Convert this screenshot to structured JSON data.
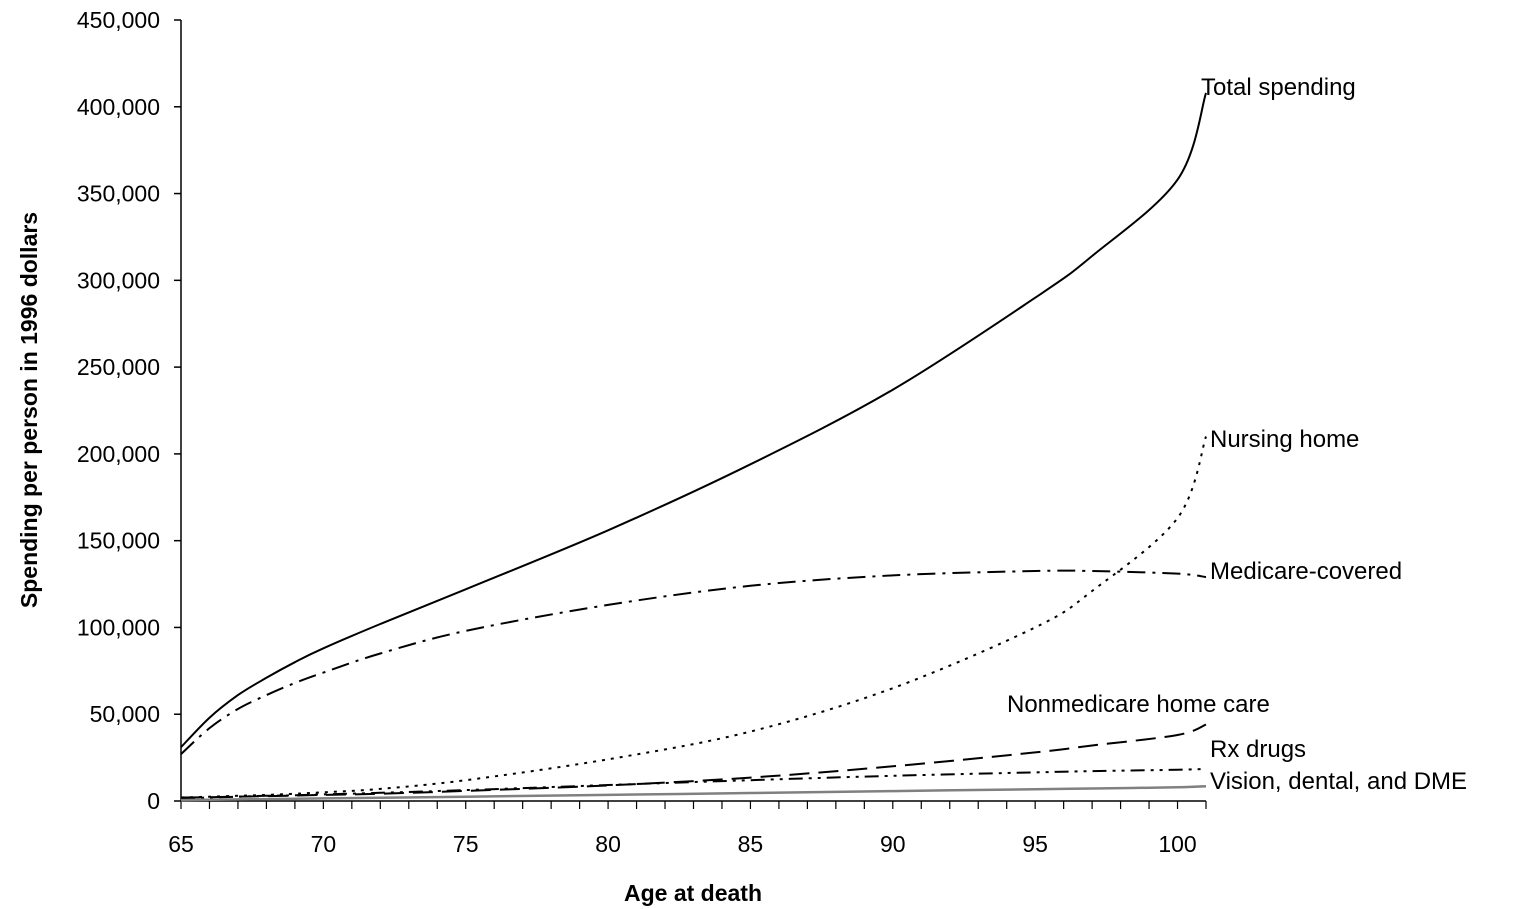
{
  "chart_data": {
    "type": "line",
    "title": "",
    "xlabel": "Age at death",
    "ylabel": "Spending per person in 1996 dollars",
    "xlim": [
      65,
      101
    ],
    "ylim": [
      0,
      450000
    ],
    "x_ticks": [
      "65",
      "70",
      "75",
      "80",
      "85",
      "90",
      "95",
      "100"
    ],
    "y_ticks": [
      "0",
      "50,000",
      "100,000",
      "150,000",
      "200,000",
      "250,000",
      "300,000",
      "350,000",
      "400,000",
      "450,000"
    ],
    "grid": false,
    "legend": "none (series labeled directly at right)",
    "x": [
      65,
      66,
      67,
      68,
      69,
      70,
      72,
      75,
      80,
      85,
      90,
      95,
      97,
      100,
      101
    ],
    "series": [
      {
        "name": "Total spending",
        "color": "#000000",
        "dash": "solid",
        "values": [
          31000,
          48000,
          61000,
          71000,
          80000,
          88000,
          102000,
          122000,
          156000,
          194000,
          237000,
          290000,
          314000,
          358000,
          408000
        ]
      },
      {
        "name": "Nursing home",
        "color": "#000000",
        "dash": "dotted",
        "values": [
          2000,
          2500,
          3000,
          3500,
          4200,
          5000,
          7000,
          12000,
          24000,
          40000,
          65000,
          100000,
          121000,
          163000,
          210000
        ]
      },
      {
        "name": "Medicare-covered",
        "color": "#000000",
        "dash": "dashdot",
        "values": [
          27000,
          42000,
          53000,
          61000,
          68000,
          74000,
          85000,
          98000,
          113000,
          124000,
          130000,
          132500,
          132500,
          131000,
          129000
        ]
      },
      {
        "name": "Nonmedicare home care",
        "color": "#000000",
        "dash": "dashed",
        "values": [
          2000,
          2200,
          2500,
          2800,
          3100,
          3500,
          4200,
          5800,
          9000,
          13500,
          20000,
          28000,
          32000,
          38000,
          44000
        ]
      },
      {
        "name": "Rx drugs",
        "color": "#000000",
        "dash": "dashdotdot",
        "values": [
          1500,
          2000,
          2500,
          3000,
          3300,
          3800,
          4700,
          6300,
          9200,
          12000,
          14500,
          16500,
          17200,
          18000,
          18500
        ]
      },
      {
        "name": "Vision, dental, and DME",
        "color": "#808080",
        "dash": "solid",
        "values": [
          500,
          700,
          900,
          1100,
          1300,
          1500,
          1900,
          2500,
          3500,
          4600,
          5700,
          6800,
          7200,
          7900,
          8500
        ]
      }
    ]
  }
}
